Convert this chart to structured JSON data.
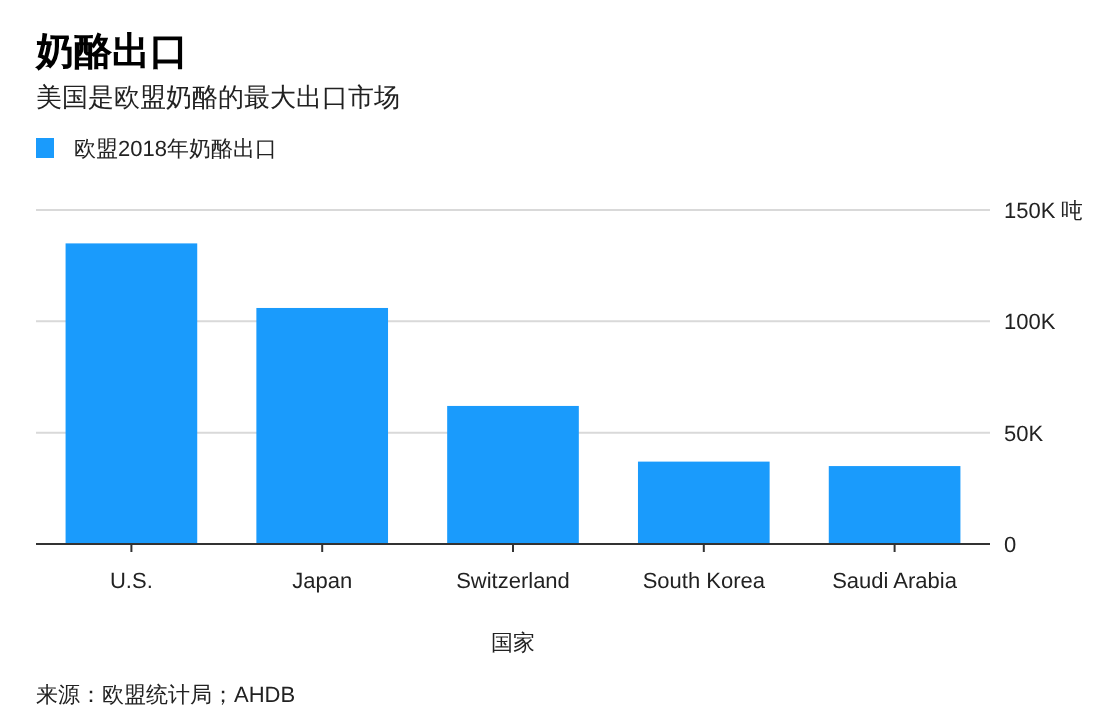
{
  "chart_data": {
    "type": "bar",
    "title": "奶酪出口",
    "subtitle": "美国是欧盟奶酪的最大出口市场",
    "xlabel": "国家",
    "categories": [
      "U.S.",
      "Japan",
      "Switzerland",
      "South Korea",
      "Saudi Arabia"
    ],
    "series": [
      {
        "name": "欧盟2018年奶酪出口",
        "color": "#1a9bfc",
        "values": [
          135000,
          106000,
          62000,
          37000,
          35000
        ]
      }
    ],
    "ylim": [
      0,
      150000
    ],
    "yticks": [
      {
        "value": 0,
        "label": "0"
      },
      {
        "value": 50000,
        "label": "50K"
      },
      {
        "value": 100000,
        "label": "100K"
      },
      {
        "value": 150000,
        "label": "150K 吨"
      }
    ],
    "grid": "y",
    "legend": "top left",
    "annotations": [
      "来源：欧盟统计局；AHDB"
    ]
  }
}
